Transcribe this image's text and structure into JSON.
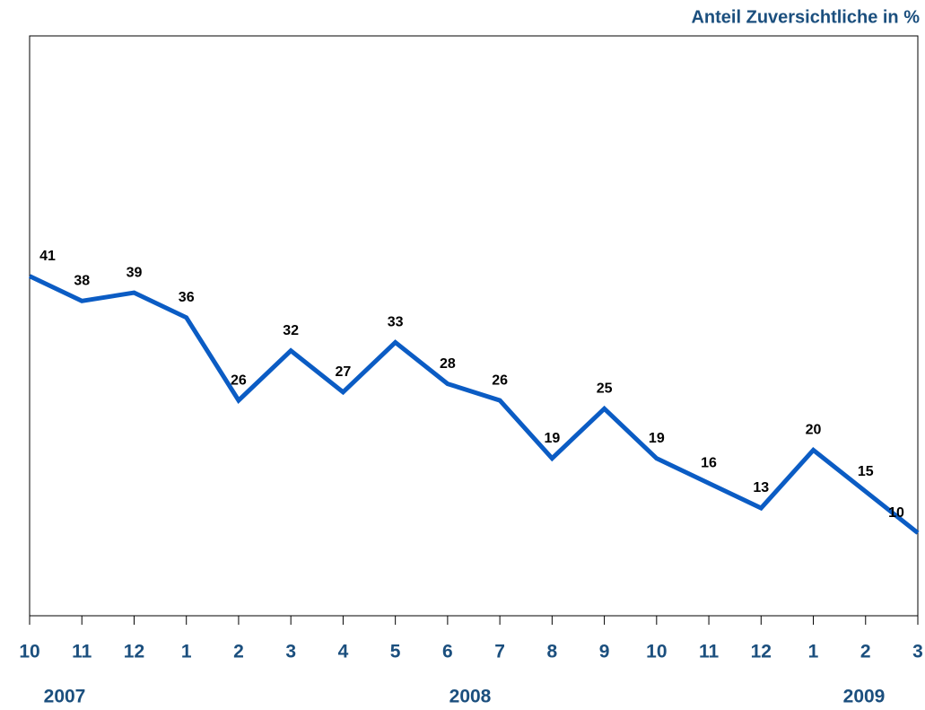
{
  "chart_data": {
    "type": "line",
    "title": "Anteil Zuversichtliche in %",
    "categories": [
      "10",
      "11",
      "12",
      "1",
      "2",
      "3",
      "4",
      "5",
      "6",
      "7",
      "8",
      "9",
      "10",
      "11",
      "12",
      "1",
      "2",
      "3"
    ],
    "years": [
      "2007",
      "2008",
      "2009"
    ],
    "values": [
      41,
      38,
      39,
      36,
      26,
      32,
      27,
      33,
      28,
      26,
      19,
      25,
      19,
      16,
      13,
      20,
      15,
      10
    ],
    "color": "#0b5cc4",
    "ylim": [
      0,
      70
    ]
  }
}
